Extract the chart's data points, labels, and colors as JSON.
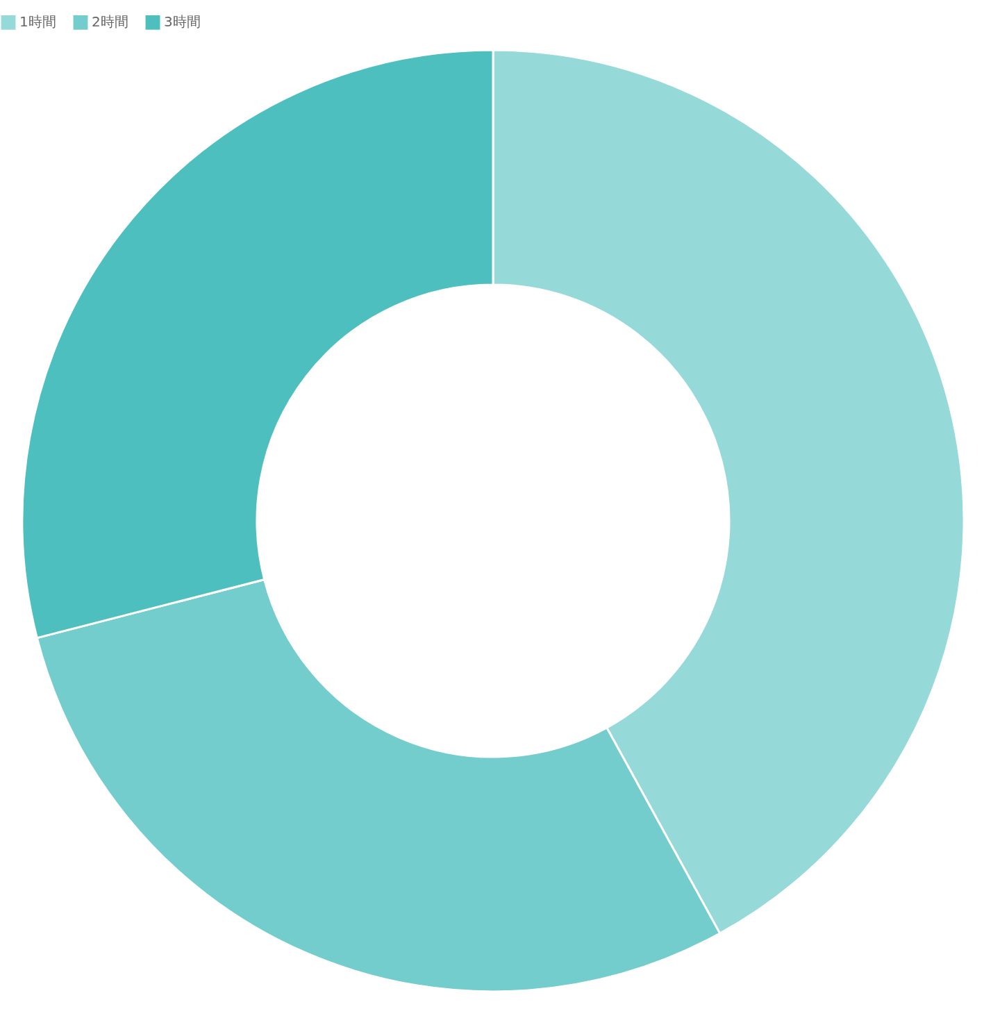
{
  "chart_data": {
    "type": "donut",
    "categories": [
      "1時間",
      "2時間",
      "3時間"
    ],
    "values": [
      42,
      29,
      29
    ],
    "colors": [
      "#96d9d9",
      "#73cdcd",
      "#4ebfbf"
    ],
    "legend": "top"
  }
}
